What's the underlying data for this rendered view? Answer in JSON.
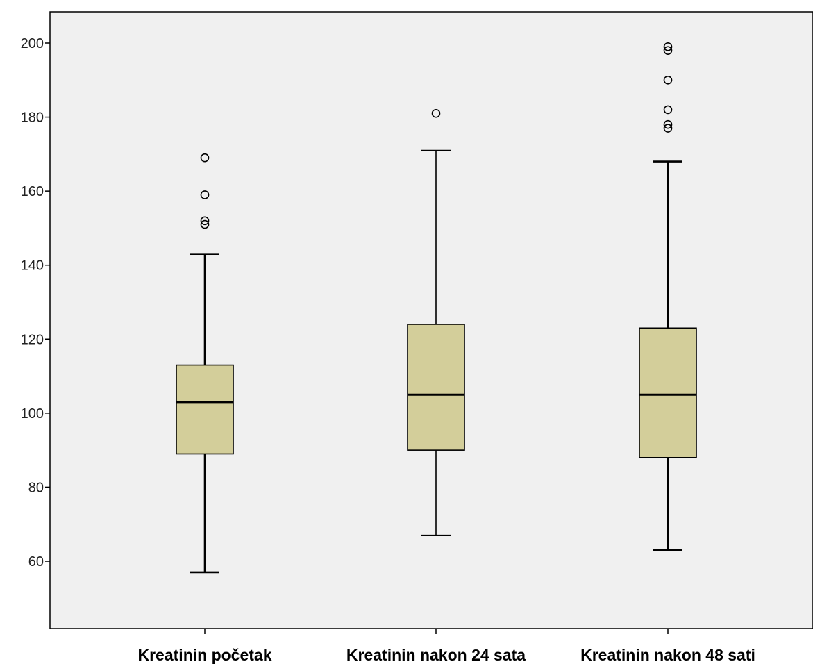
{
  "chart_data": {
    "type": "boxplot",
    "title": "",
    "xlabel": "",
    "ylabel": "",
    "ylim": [
      42,
      210
    ],
    "yticks": [
      60,
      80,
      100,
      120,
      140,
      160,
      180,
      200
    ],
    "grid": false,
    "colors": {
      "plot_background": "#f0f0f0",
      "box_fill": "#d3ce9a",
      "box_stroke": "#000000",
      "outlier_stroke": "#000000"
    },
    "categories": [
      "Kreatinin početak",
      "Kreatinin nakon 24 sata",
      "Kreatinin nakon 48 sati"
    ],
    "boxes": [
      {
        "category": "Kreatinin početak",
        "whisker_low": 57,
        "q1": 89,
        "median": 103,
        "q3": 113,
        "whisker_high": 143,
        "outliers": [
          151,
          152,
          159,
          169
        ]
      },
      {
        "category": "Kreatinin nakon 24 sata",
        "whisker_low": 67,
        "q1": 90,
        "median": 105,
        "q3": 124,
        "whisker_high": 171,
        "outliers": [
          181
        ]
      },
      {
        "category": "Kreatinin nakon 48 sati",
        "whisker_low": 63,
        "q1": 88,
        "median": 105,
        "q3": 123,
        "whisker_high": 168,
        "outliers": [
          177,
          178,
          182,
          190,
          198,
          199
        ]
      }
    ]
  }
}
